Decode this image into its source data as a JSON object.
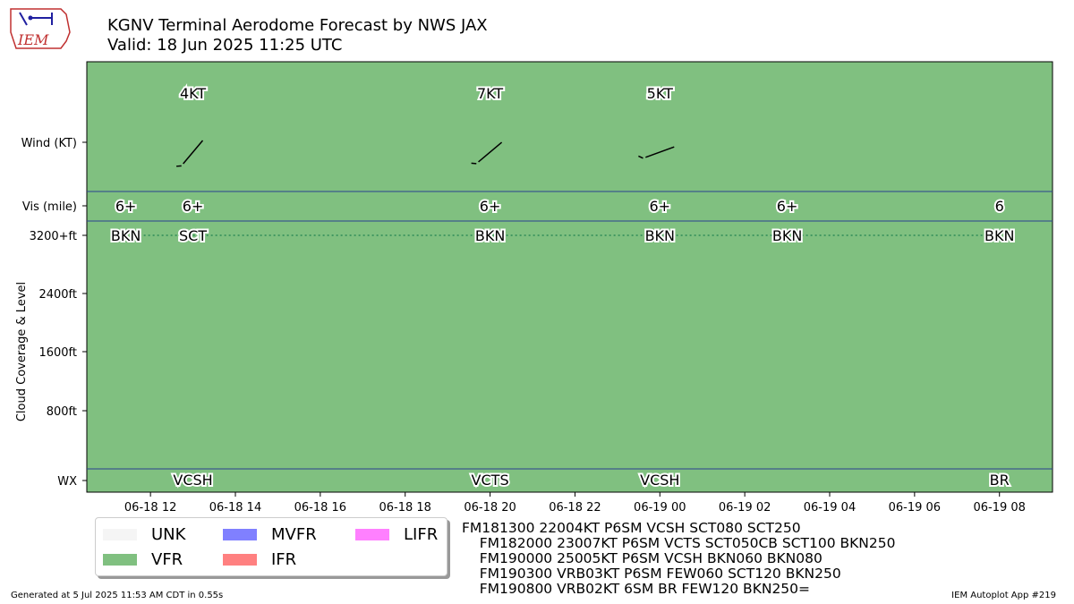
{
  "header": {
    "title_line1": "KGNV Terminal Aerodome Forecast by NWS JAX",
    "title_line2": "Valid: 18 Jun 2025 11:25 UTC",
    "logo_text": "IEM"
  },
  "chart_data": {
    "type": "taf_timeline",
    "background_category": "VFR",
    "ylabel": "Cloud Coverage & Level",
    "row_labels": [
      "Wind (KT)",
      "Vis (mile)",
      "3200+ft",
      "2400ft",
      "1600ft",
      "800ft",
      "WX"
    ],
    "x_ticks": [
      "06-18 12",
      "06-18 14",
      "06-18 16",
      "06-18 18",
      "06-18 20",
      "06-18 22",
      "06-19 00",
      "06-19 02",
      "06-19 04",
      "06-19 06",
      "06-19 08"
    ],
    "x_tick_hours": [
      12,
      14,
      16,
      18,
      20,
      22,
      24,
      26,
      28,
      30,
      32
    ],
    "x_range_hours": [
      10.5,
      33.25
    ],
    "wind": [
      {
        "hour": 13.0,
        "label": "4KT",
        "dir_deg": 220,
        "speed_kt": 4
      },
      {
        "hour": 20.0,
        "label": "7KT",
        "dir_deg": 230,
        "speed_kt": 7
      },
      {
        "hour": 24.0,
        "label": "5KT",
        "dir_deg": 250,
        "speed_kt": 5
      }
    ],
    "visibility": [
      {
        "hour": 11.42,
        "label": "6+"
      },
      {
        "hour": 13.0,
        "label": "6+"
      },
      {
        "hour": 20.0,
        "label": "6+"
      },
      {
        "hour": 24.0,
        "label": "6+"
      },
      {
        "hour": 27.0,
        "label": "6+"
      },
      {
        "hour": 32.0,
        "label": "6"
      }
    ],
    "clouds": [
      {
        "hour": 11.42,
        "label": "BKN"
      },
      {
        "hour": 13.0,
        "label": "SCT"
      },
      {
        "hour": 20.0,
        "label": "BKN"
      },
      {
        "hour": 24.0,
        "label": "BKN"
      },
      {
        "hour": 27.0,
        "label": "BKN"
      },
      {
        "hour": 32.0,
        "label": "BKN"
      }
    ],
    "weather": [
      {
        "hour": 13.0,
        "label": "VCSH"
      },
      {
        "hour": 20.0,
        "label": "VCTS"
      },
      {
        "hour": 24.0,
        "label": "VCSH"
      },
      {
        "hour": 32.0,
        "label": "BR"
      }
    ]
  },
  "legend": [
    {
      "label": "UNK",
      "color": "#f5f5f5"
    },
    {
      "label": "VFR",
      "color": "#80c080"
    },
    {
      "label": "MVFR",
      "color": "#8080ff"
    },
    {
      "label": "IFR",
      "color": "#ff8080"
    },
    {
      "label": "LIFR",
      "color": "#ff80ff"
    }
  ],
  "taf_text": [
    "FM181300 22004KT P6SM VCSH SCT080 SCT250",
    "    FM182000 23007KT P6SM VCTS SCT050CB SCT100 BKN250",
    "    FM190000 25005KT P6SM VCSH BKN060 BKN080",
    "    FM190300 VRB03KT P6SM FEW060 SCT120 BKN250",
    "    FM190800 VRB02KT 6SM BR FEW120 BKN250="
  ],
  "footer": {
    "left": "Generated at 5 Jul 2025 11:53 AM CDT in 0.55s",
    "right": "IEM Autoplot App #219"
  },
  "colors": {
    "vfr_fill": "#80c080",
    "divider": "#2a3f8f",
    "cloud_line": "#2e8b57"
  }
}
